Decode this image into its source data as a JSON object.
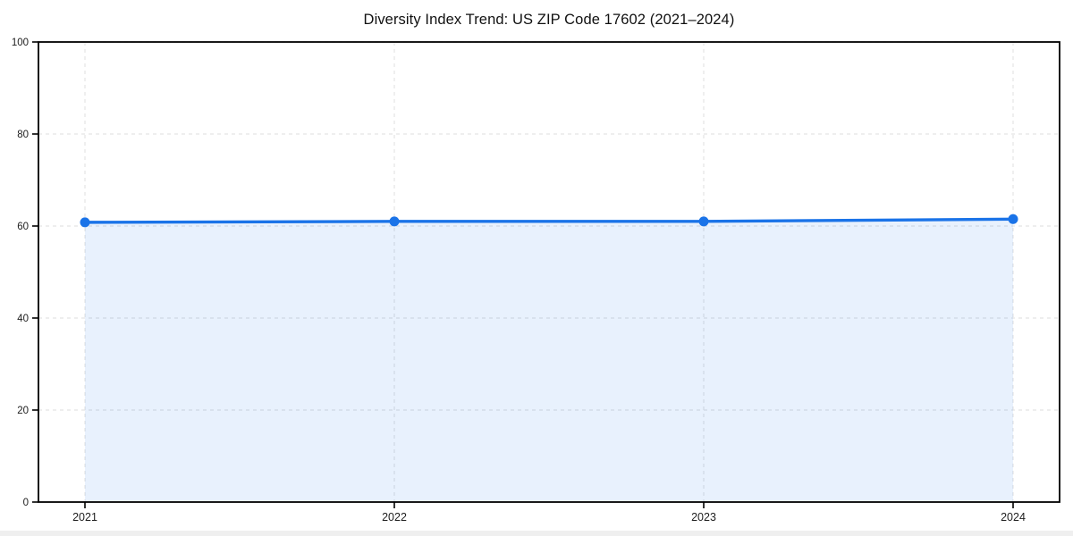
{
  "chart_data": {
    "type": "line",
    "title": "Diversity Index Trend: US ZIP Code 17602 (2021–2024)",
    "categories": [
      "2021",
      "2022",
      "2023",
      "2024"
    ],
    "series": [
      {
        "name": "Diversity Index",
        "values": [
          60.8,
          61.0,
          61.0,
          61.5
        ]
      }
    ],
    "xlabel": "",
    "ylabel": "",
    "ylim": [
      0,
      100
    ],
    "yticks": [
      0,
      20,
      40,
      60,
      80,
      100
    ],
    "grid": "dashed, horizontal and vertical",
    "legend_position": "none",
    "area_fill": true,
    "marker": "circle",
    "colors": {
      "line": "#1a73e8",
      "marker": "#1a73e8",
      "area_fill": "rgba(26,115,232,0.10)",
      "grid": "#e4e4e4",
      "axis_border": "#000000",
      "tick_label": "#1c1c1c",
      "title": "#111111",
      "background": "#ffffff"
    }
  }
}
